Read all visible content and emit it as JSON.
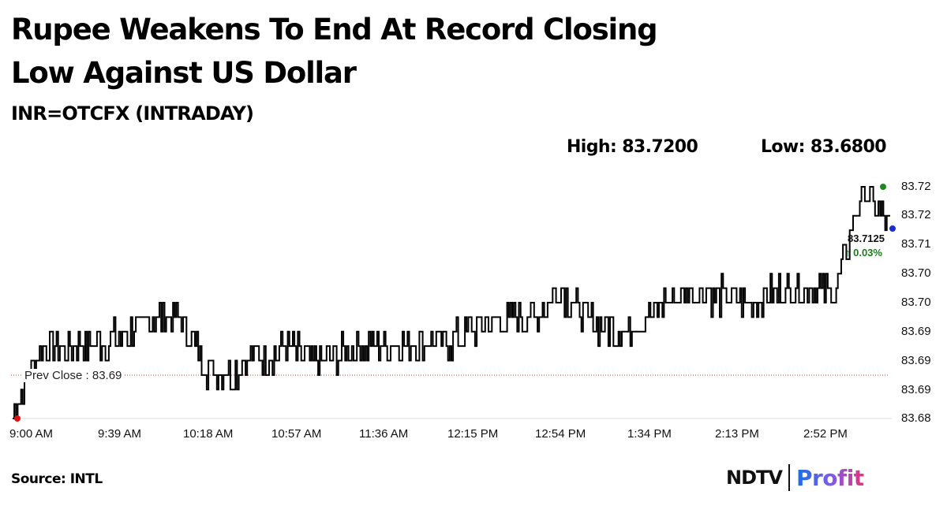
{
  "header": {
    "title": "Rupee Weakens To End At Record Closing Low Against US Dollar",
    "title_line1": "Rupee Weakens To End At Record Closing",
    "title_line2": "Low Against US Dollar",
    "subtitle": "INR=OTCFX (INTRADAY)",
    "high_label": "High: 83.7200",
    "low_label": "Low: 83.6800"
  },
  "annotations": {
    "prev_close_label": "Prev Close : 83.69",
    "last_value": "83.7125",
    "last_change": "↑ 0.03%"
  },
  "footer": {
    "source": "Source: INTL",
    "logo_ndtv": "NDTV",
    "logo_profit": "Profit"
  },
  "colors": {
    "line": "#000000",
    "prev_close_line": "#c0392b",
    "high_marker": "#1e8a1e",
    "low_marker": "#e01010",
    "last_marker": "#1a2fd0",
    "change_text": "#1e7a1e"
  },
  "chart_data": {
    "type": "line",
    "title": "INR=OTCFX (INTRADAY)",
    "xlabel": "",
    "ylabel": "",
    "y_tick_labels": [
      "83.72",
      "83.72",
      "83.71",
      "83.70",
      "83.70",
      "83.69",
      "83.69",
      "83.69",
      "83.68"
    ],
    "y_tick_values": [
      83.72,
      83.715,
      83.71,
      83.705,
      83.7,
      83.695,
      83.69,
      83.685,
      83.68
    ],
    "x_tick_labels": [
      "9:00 AM",
      "9:39 AM",
      "10:18 AM",
      "10:57 AM",
      "11:36 AM",
      "12:15 PM",
      "12:54 PM",
      "1:34 PM",
      "2:13 PM",
      "2:52 PM"
    ],
    "ylim": [
      83.68,
      83.72
    ],
    "grid": false,
    "legend": null,
    "prev_close": 83.6865,
    "high": 83.72,
    "low": 83.68,
    "last": 83.7125,
    "change_pct": 0.03,
    "x": [
      "9:00",
      "9:10",
      "9:20",
      "9:30",
      "9:39",
      "9:50",
      "10:00",
      "10:10",
      "10:18",
      "10:30",
      "10:45",
      "10:57",
      "11:10",
      "11:25",
      "11:36",
      "11:50",
      "12:05",
      "12:15",
      "12:30",
      "12:45",
      "12:54",
      "13:05",
      "13:20",
      "13:34",
      "13:50",
      "14:00",
      "14:13",
      "14:25",
      "14:40",
      "14:52",
      "15:05",
      "15:15",
      "15:25"
    ],
    "values": [
      83.681,
      83.692,
      83.692,
      83.693,
      83.694,
      83.697,
      83.698,
      83.689,
      83.688,
      83.691,
      83.692,
      83.69,
      83.691,
      83.693,
      83.693,
      83.693,
      83.693,
      83.696,
      83.697,
      83.698,
      83.702,
      83.697,
      83.695,
      83.697,
      83.701,
      83.702,
      83.701,
      83.7,
      83.702,
      83.703,
      83.702,
      83.72,
      83.7125
    ]
  }
}
